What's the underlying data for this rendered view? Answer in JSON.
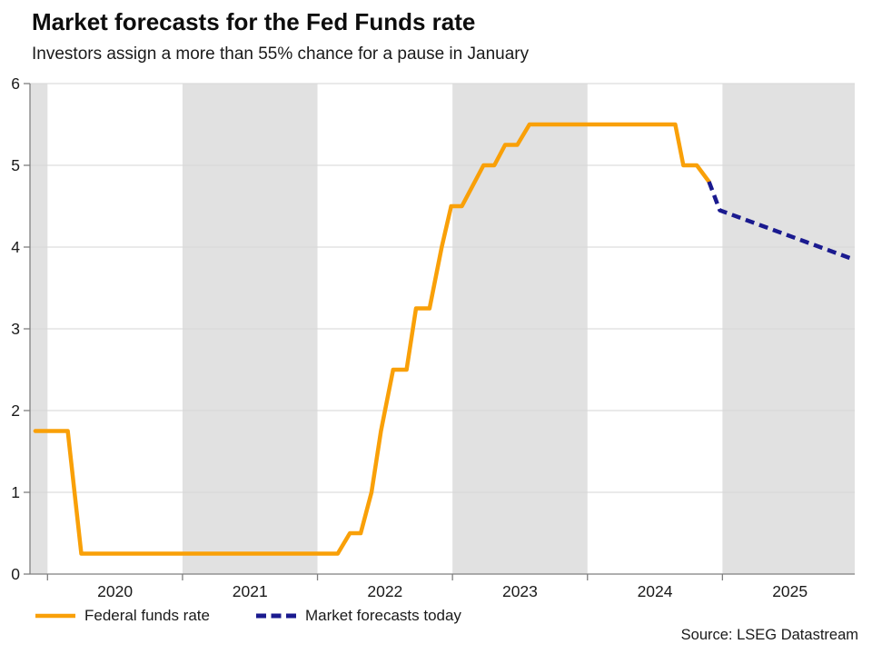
{
  "header": {
    "title": "Market forecasts for the Fed Funds rate",
    "subtitle": "Investors assign a more than 55% chance for a pause in January"
  },
  "footer": {
    "source": "Source: LSEG Datastream"
  },
  "chart_data": {
    "type": "line",
    "title": "Market forecasts for the Fed Funds rate",
    "subtitle": "Investors assign a more than 55% chance for a pause in January",
    "x_axis": {
      "range": [
        2019.87,
        2025.98
      ],
      "ticks": [
        2020,
        2021,
        2022,
        2023,
        2024,
        2025
      ],
      "tick_labels": [
        "2020",
        "2021",
        "2022",
        "2023",
        "2024",
        "2025"
      ]
    },
    "y_axis": {
      "range": [
        0,
        6
      ],
      "ticks": [
        0,
        1,
        2,
        3,
        4,
        5,
        6
      ],
      "tick_labels": [
        "0",
        "1",
        "2",
        "3",
        "4",
        "5",
        "6"
      ]
    },
    "grid": true,
    "legend_position": "bottom",
    "shaded_bands": [
      [
        2019.87,
        2020.0
      ],
      [
        2021.0,
        2022.0
      ],
      [
        2023.0,
        2024.0
      ],
      [
        2025.0,
        2025.98
      ]
    ],
    "colors": {
      "band": "#E1E1E1",
      "grid": "#D6D6D6",
      "axis": "#7F7F7F",
      "text": "#1A1A1A"
    },
    "series": [
      {
        "name": "Federal funds rate",
        "color": "#F9A008",
        "dash": "solid",
        "points": [
          [
            2019.91,
            1.75
          ],
          [
            2020.15,
            1.75
          ],
          [
            2020.25,
            0.25
          ],
          [
            2022.15,
            0.25
          ],
          [
            2022.24,
            0.5
          ],
          [
            2022.32,
            0.5
          ],
          [
            2022.4,
            1.0
          ],
          [
            2022.47,
            1.75
          ],
          [
            2022.56,
            2.5
          ],
          [
            2022.66,
            2.5
          ],
          [
            2022.73,
            3.25
          ],
          [
            2022.83,
            3.25
          ],
          [
            2022.92,
            4.0
          ],
          [
            2022.99,
            4.5
          ],
          [
            2023.07,
            4.5
          ],
          [
            2023.23,
            5.0
          ],
          [
            2023.31,
            5.0
          ],
          [
            2023.39,
            5.25
          ],
          [
            2023.48,
            5.25
          ],
          [
            2023.57,
            5.5
          ],
          [
            2024.65,
            5.5
          ],
          [
            2024.71,
            5.0
          ],
          [
            2024.81,
            5.0
          ],
          [
            2024.9,
            4.8
          ]
        ]
      },
      {
        "name": "Market forecasts today",
        "color": "#1A1A8F",
        "dash": "dashed",
        "points": [
          [
            2024.9,
            4.8
          ],
          [
            2024.98,
            4.45
          ],
          [
            2025.97,
            3.85
          ]
        ]
      }
    ]
  }
}
